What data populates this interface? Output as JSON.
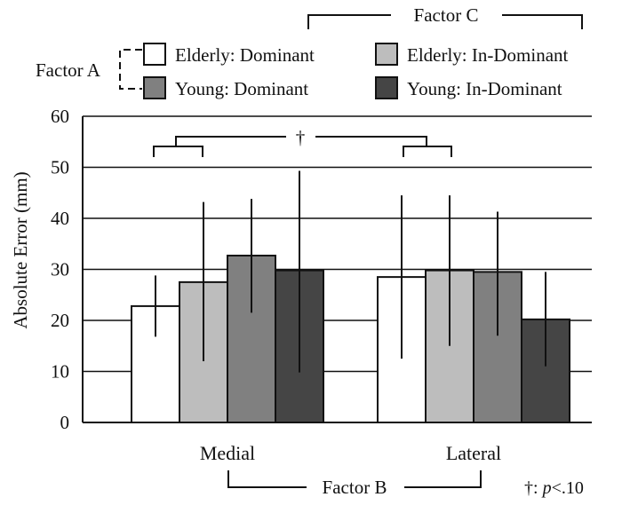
{
  "chart_data": {
    "type": "bar",
    "categories": [
      "Medial",
      "Lateral"
    ],
    "ylabel": "Absolute Error (mm)",
    "ylim": [
      0,
      60
    ],
    "yticks": [
      0,
      10,
      20,
      30,
      40,
      50,
      60
    ],
    "grid": true,
    "series": [
      {
        "name": "Elderly: Dominant",
        "color": "#ffffff",
        "values": [
          22.8,
          28.5
        ],
        "error_low": [
          16.8,
          12.5
        ],
        "error_high": [
          28.8,
          44.5
        ]
      },
      {
        "name": "Elderly: In-Dominant",
        "color": "#bdbdbd",
        "values": [
          27.5,
          29.8
        ],
        "error_low": [
          12.0,
          15.0
        ],
        "error_high": [
          43.2,
          44.5
        ]
      },
      {
        "name": "Young: Dominant",
        "color": "#808080",
        "values": [
          32.7,
          29.5
        ],
        "error_low": [
          21.5,
          17.0
        ],
        "error_high": [
          43.8,
          41.3
        ]
      },
      {
        "name": "Young: In-Dominant",
        "color": "#454545",
        "values": [
          29.8,
          20.2
        ],
        "error_low": [
          9.8,
          11.0
        ],
        "error_high": [
          49.3,
          29.5
        ]
      }
    ],
    "annotations": {
      "factor_a": "Factor A",
      "factor_b": "Factor B",
      "factor_c": "Factor C",
      "significance_mark": "†",
      "note_prefix": "†: ",
      "note_p": "p",
      "note_suffix": "<.10"
    }
  }
}
